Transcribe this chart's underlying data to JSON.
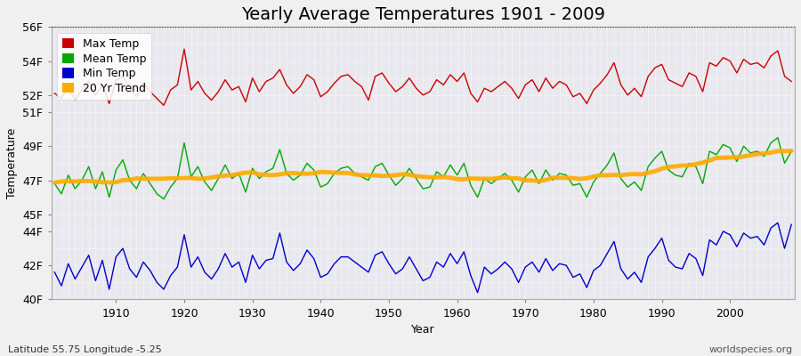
{
  "title": "Yearly Average Temperatures 1901 - 2009",
  "xlabel": "Year",
  "ylabel": "Temperature",
  "years": [
    1901,
    1902,
    1903,
    1904,
    1905,
    1906,
    1907,
    1908,
    1909,
    1910,
    1911,
    1912,
    1913,
    1914,
    1915,
    1916,
    1917,
    1918,
    1919,
    1920,
    1921,
    1922,
    1923,
    1924,
    1925,
    1926,
    1927,
    1928,
    1929,
    1930,
    1931,
    1932,
    1933,
    1934,
    1935,
    1936,
    1937,
    1938,
    1939,
    1940,
    1941,
    1942,
    1943,
    1944,
    1945,
    1946,
    1947,
    1948,
    1949,
    1950,
    1951,
    1952,
    1953,
    1954,
    1955,
    1956,
    1957,
    1958,
    1959,
    1960,
    1961,
    1962,
    1963,
    1964,
    1965,
    1966,
    1967,
    1968,
    1969,
    1970,
    1971,
    1972,
    1973,
    1974,
    1975,
    1976,
    1977,
    1978,
    1979,
    1980,
    1981,
    1982,
    1983,
    1984,
    1985,
    1986,
    1987,
    1988,
    1989,
    1990,
    1991,
    1992,
    1993,
    1994,
    1995,
    1996,
    1997,
    1998,
    1999,
    2000,
    2001,
    2002,
    2003,
    2004,
    2005,
    2006,
    2007,
    2008,
    2009
  ],
  "max_temp": [
    52.1,
    51.8,
    52.5,
    51.7,
    52.3,
    52.8,
    52.0,
    52.6,
    51.5,
    52.9,
    53.1,
    52.4,
    51.9,
    52.7,
    52.2,
    51.8,
    51.4,
    52.3,
    52.6,
    54.7,
    52.3,
    52.8,
    52.1,
    51.7,
    52.2,
    52.9,
    52.3,
    52.5,
    51.6,
    53.0,
    52.2,
    52.8,
    53.0,
    53.5,
    52.6,
    52.1,
    52.5,
    53.2,
    52.9,
    51.9,
    52.2,
    52.7,
    53.1,
    53.2,
    52.8,
    52.5,
    51.7,
    53.1,
    53.3,
    52.7,
    52.2,
    52.5,
    53.0,
    52.4,
    52.0,
    52.2,
    52.9,
    52.6,
    53.2,
    52.8,
    53.3,
    52.1,
    51.6,
    52.4,
    52.2,
    52.5,
    52.8,
    52.4,
    51.8,
    52.6,
    52.9,
    52.2,
    53.0,
    52.4,
    52.8,
    52.6,
    51.9,
    52.1,
    51.5,
    52.3,
    52.7,
    53.2,
    53.9,
    52.6,
    52.0,
    52.4,
    51.9,
    53.1,
    53.6,
    53.8,
    52.9,
    52.7,
    52.5,
    53.3,
    53.1,
    52.2,
    53.9,
    53.7,
    54.2,
    54.0,
    53.3,
    54.1,
    53.8,
    53.9,
    53.6,
    54.3,
    54.6,
    53.1,
    52.8
  ],
  "mean_temp": [
    46.8,
    46.2,
    47.3,
    46.5,
    47.0,
    47.8,
    46.5,
    47.5,
    46.0,
    47.6,
    48.2,
    47.0,
    46.5,
    47.4,
    46.8,
    46.2,
    45.9,
    46.6,
    47.1,
    49.2,
    47.2,
    47.8,
    46.9,
    46.4,
    47.1,
    47.9,
    47.1,
    47.4,
    46.3,
    47.7,
    47.1,
    47.5,
    47.7,
    48.8,
    47.4,
    47.0,
    47.3,
    48.0,
    47.6,
    46.6,
    46.8,
    47.4,
    47.7,
    47.8,
    47.4,
    47.2,
    47.0,
    47.8,
    48.0,
    47.3,
    46.7,
    47.1,
    47.7,
    47.1,
    46.5,
    46.6,
    47.5,
    47.2,
    47.9,
    47.3,
    48.0,
    46.7,
    46.0,
    47.1,
    46.8,
    47.1,
    47.4,
    47.0,
    46.3,
    47.2,
    47.6,
    46.8,
    47.6,
    47.0,
    47.4,
    47.3,
    46.7,
    46.8,
    46.0,
    46.9,
    47.4,
    47.9,
    48.6,
    47.1,
    46.6,
    46.9,
    46.4,
    47.8,
    48.3,
    48.7,
    47.6,
    47.3,
    47.2,
    48.0,
    47.8,
    46.8,
    48.7,
    48.5,
    49.1,
    48.9,
    48.1,
    49.0,
    48.6,
    48.7,
    48.4,
    49.2,
    49.5,
    48.0,
    48.7
  ],
  "min_temp": [
    41.6,
    40.8,
    42.1,
    41.2,
    41.9,
    42.6,
    41.1,
    42.3,
    40.6,
    42.5,
    43.0,
    41.8,
    41.3,
    42.2,
    41.7,
    41.0,
    40.6,
    41.4,
    41.9,
    43.8,
    41.9,
    42.5,
    41.6,
    41.2,
    41.8,
    42.7,
    41.9,
    42.2,
    41.0,
    42.6,
    41.8,
    42.3,
    42.4,
    43.9,
    42.2,
    41.7,
    42.1,
    42.9,
    42.4,
    41.3,
    41.5,
    42.1,
    42.5,
    42.5,
    42.2,
    41.9,
    41.6,
    42.6,
    42.8,
    42.1,
    41.5,
    41.8,
    42.5,
    41.8,
    41.1,
    41.3,
    42.2,
    41.9,
    42.7,
    42.1,
    42.8,
    41.4,
    40.4,
    41.9,
    41.5,
    41.8,
    42.2,
    41.8,
    41.0,
    41.9,
    42.2,
    41.6,
    42.4,
    41.7,
    42.1,
    42.0,
    41.3,
    41.5,
    40.7,
    41.7,
    42.0,
    42.7,
    43.4,
    41.8,
    41.2,
    41.6,
    41.0,
    42.5,
    43.0,
    43.6,
    42.3,
    41.9,
    41.8,
    42.7,
    42.4,
    41.4,
    43.5,
    43.2,
    44.0,
    43.8,
    43.1,
    43.9,
    43.6,
    43.7,
    43.2,
    44.2,
    44.5,
    43.0,
    44.4
  ],
  "ylim": [
    40,
    56
  ],
  "yticks": [
    40,
    42,
    44,
    45,
    47,
    49,
    51,
    52,
    54,
    56
  ],
  "ytick_labels": [
    "40F",
    "42F",
    "44F",
    "45F",
    "47F",
    "49F",
    "51F",
    "52F",
    "54F",
    "56F"
  ],
  "fig_bg_color": "#f0f0f0",
  "plot_bg_color": "#e8e8ee",
  "grid_color": "#ffffff",
  "max_color": "#cc0000",
  "mean_color": "#00aa00",
  "min_color": "#0000cc",
  "trend_color": "#ffaa00",
  "trend_linewidth": 3.5,
  "data_linewidth": 1.0,
  "title_fontsize": 14,
  "axis_fontsize": 9,
  "legend_fontsize": 9,
  "bottom_left_text": "Latitude 55.75 Longitude -5.25",
  "bottom_right_text": "worldspecies.org",
  "xticks": [
    1910,
    1920,
    1930,
    1940,
    1950,
    1960,
    1970,
    1980,
    1990,
    2000
  ]
}
